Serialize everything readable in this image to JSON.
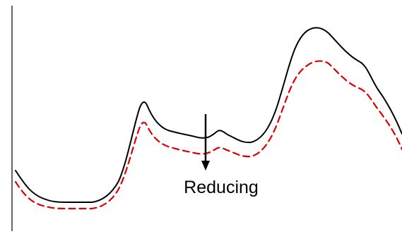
{
  "annotation": {
    "label": "Reducing"
  },
  "colors": {
    "upper_curve": "#000000",
    "lower_curve": "#dd0000",
    "axis": "#000000",
    "arrow": "#000000"
  },
  "style": {
    "upper_curve_line": "solid",
    "lower_curve_line": "dashed"
  }
}
